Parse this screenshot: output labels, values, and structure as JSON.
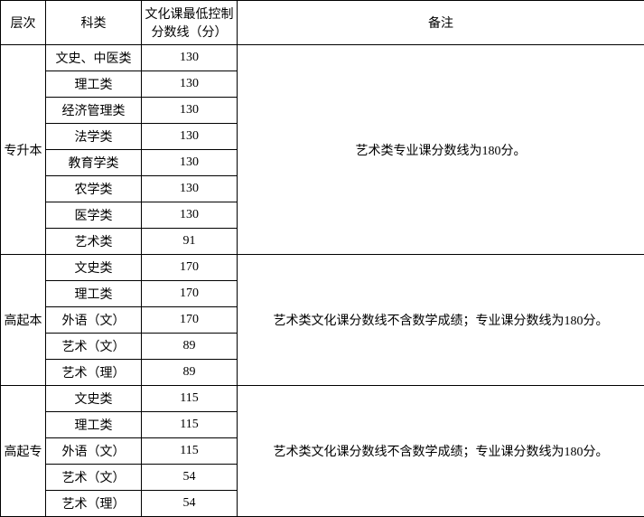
{
  "headers": {
    "level": "层次",
    "subject": "科类",
    "score": "文化课最低控制分数线（分）",
    "remark": "备注"
  },
  "groups": [
    {
      "level": "专升本",
      "remark": "艺术类专业课分数线为180分。",
      "rows": [
        {
          "subject": "文史、中医类",
          "score": "130"
        },
        {
          "subject": "理工类",
          "score": "130"
        },
        {
          "subject": "经济管理类",
          "score": "130"
        },
        {
          "subject": "法学类",
          "score": "130"
        },
        {
          "subject": "教育学类",
          "score": "130"
        },
        {
          "subject": "农学类",
          "score": "130"
        },
        {
          "subject": "医学类",
          "score": "130"
        },
        {
          "subject": "艺术类",
          "score": "91"
        }
      ]
    },
    {
      "level": "高起本",
      "remark": "艺术类文化课分数线不含数学成绩；专业课分数线为180分。",
      "rows": [
        {
          "subject": "文史类",
          "score": "170"
        },
        {
          "subject": "理工类",
          "score": "170"
        },
        {
          "subject": "外语（文）",
          "score": "170"
        },
        {
          "subject": "艺术（文）",
          "score": "89"
        },
        {
          "subject": "艺术（理）",
          "score": "89"
        }
      ]
    },
    {
      "level": "高起专",
      "remark": "艺术类文化课分数线不含数学成绩；专业课分数线为180分。",
      "rows": [
        {
          "subject": "文史类",
          "score": "115"
        },
        {
          "subject": "理工类",
          "score": "115"
        },
        {
          "subject": "外语（文）",
          "score": "115"
        },
        {
          "subject": "艺术（文）",
          "score": "54"
        },
        {
          "subject": "艺术（理）",
          "score": "54"
        }
      ]
    }
  ]
}
